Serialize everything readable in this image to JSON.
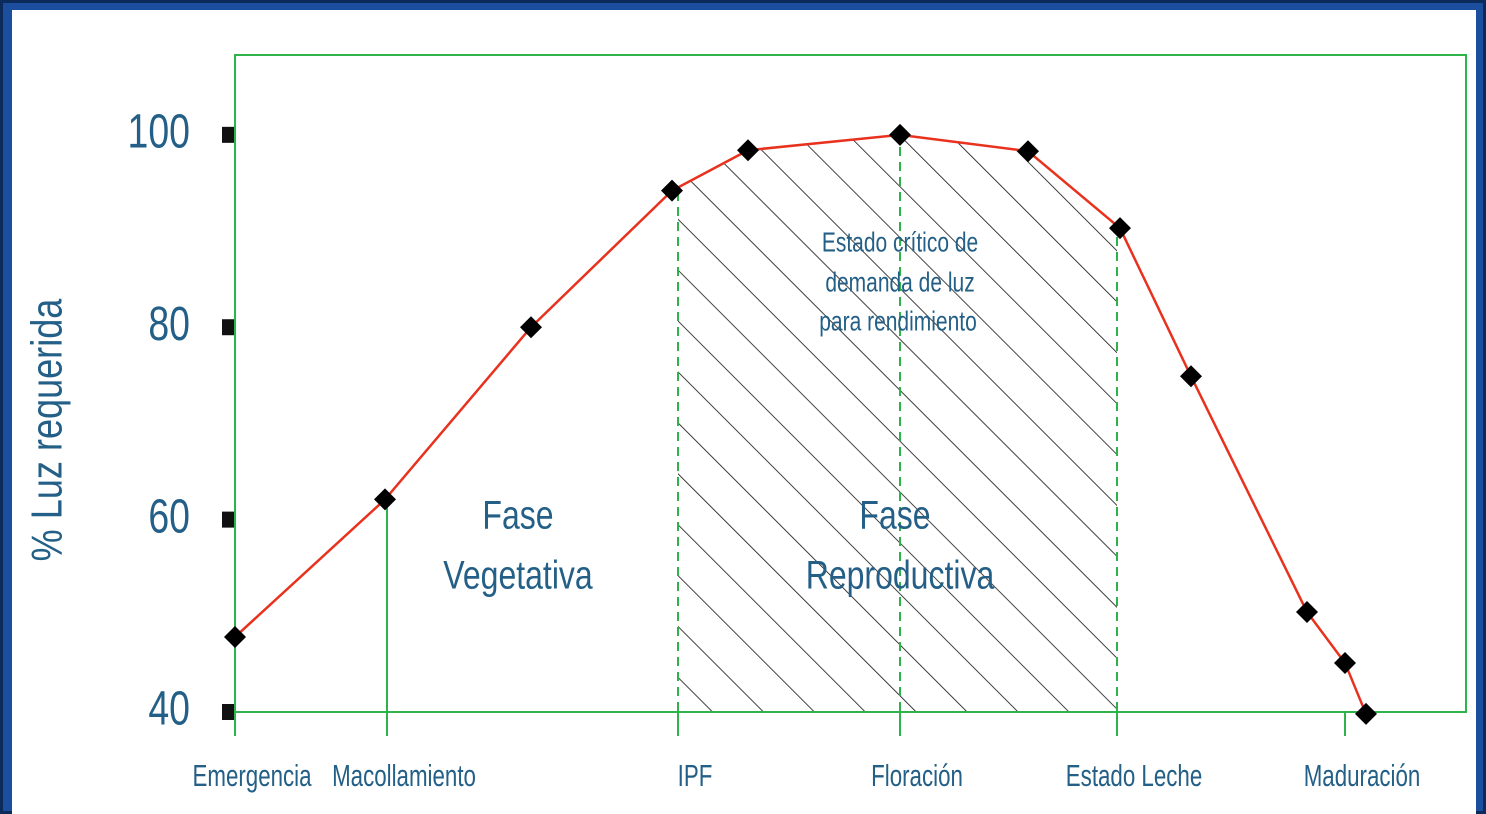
{
  "chart_data": {
    "type": "line",
    "y_label": "% Luz requerida",
    "x": [
      0,
      15,
      29.6,
      43.7,
      51.3,
      66.5,
      79.3,
      88.5,
      95.6,
      107.2,
      111,
      113.1
    ],
    "values": [
      47.8,
      62.1,
      80,
      94.2,
      98.4,
      100,
      98.3,
      90.3,
      74.9,
      50.4,
      45.1,
      39.8
    ],
    "color": "#e8321e",
    "marker_color": "#000000",
    "axis_color": "#2db34a",
    "xlim": [
      0,
      123.1
    ],
    "ylim": [
      40,
      108.3
    ],
    "xticks": [
      {
        "value": 0,
        "label": "Emergencia"
      },
      {
        "value": 15.2,
        "label": "Macollamiento"
      },
      {
        "value": 44.3,
        "label": "IPF"
      },
      {
        "value": 66.5,
        "label": "Floración"
      },
      {
        "value": 88.2,
        "label": "Estado Leche"
      },
      {
        "value": 111,
        "label": "Maduración"
      }
    ],
    "yticks": [
      40,
      60,
      80,
      100
    ],
    "guides": [
      {
        "x": 15.2,
        "dashed": false
      },
      {
        "x": 44.3,
        "dashed": true
      },
      {
        "x": 66.5,
        "dashed": true
      },
      {
        "x": 88.2,
        "dashed": true
      }
    ],
    "shaded_span": [
      44.3,
      88.2
    ],
    "annotations": {
      "vegetative": [
        "Fase",
        "Vegetativa"
      ],
      "reproductive": [
        "Fase",
        "Reproductiva"
      ],
      "critical": [
        "Estado crítico de",
        "demanda de luz",
        "para rendimiento"
      ]
    }
  }
}
